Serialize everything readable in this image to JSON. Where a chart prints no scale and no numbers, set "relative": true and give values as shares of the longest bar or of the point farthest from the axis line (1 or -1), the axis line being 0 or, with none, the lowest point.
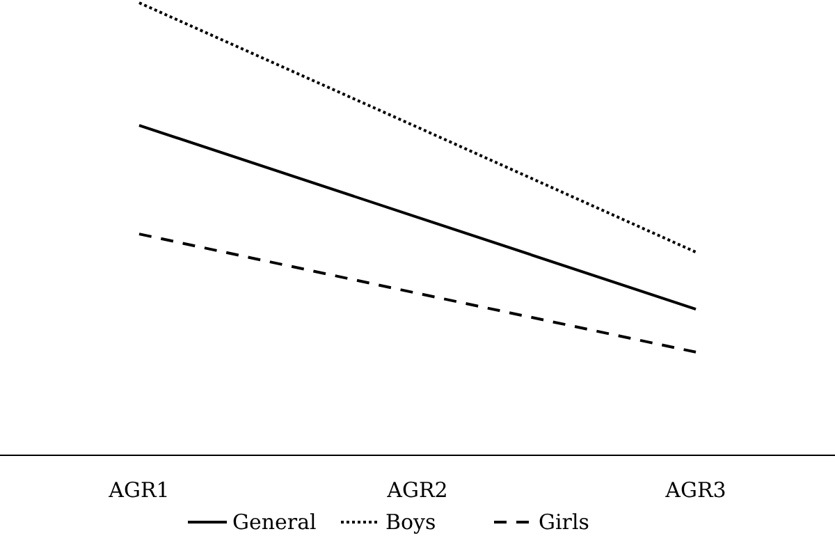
{
  "chart_data": {
    "type": "line",
    "relative": true,
    "categories": [
      "AGR1",
      "AGR2",
      "AGR3"
    ],
    "legend": "bottom",
    "series": [
      {
        "name": "General",
        "color": "#000000",
        "line_style": "solid",
        "values": [
          0.729,
          0.526,
          0.323
        ]
      },
      {
        "name": "Boys",
        "color": "#000000",
        "line_style": "dotted",
        "values": [
          1,
          0.725,
          0.449
        ]
      },
      {
        "name": "Girls",
        "color": "#000000",
        "line_style": "dashed",
        "values": [
          0.489,
          0.358,
          0.228
        ]
      }
    ]
  }
}
